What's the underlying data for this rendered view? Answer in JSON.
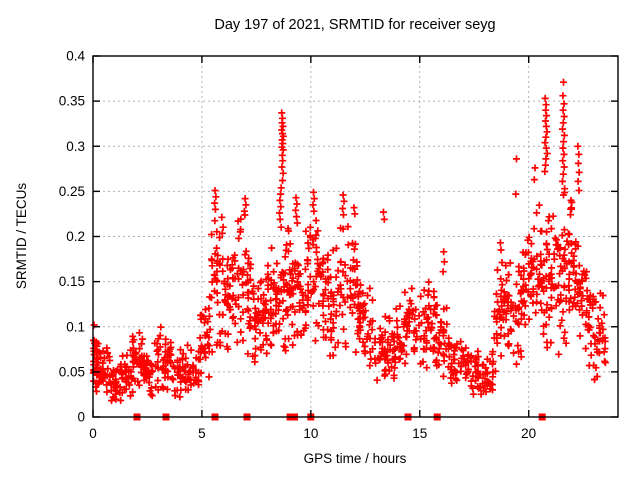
{
  "chart_data": {
    "type": "scatter",
    "title": "Day 197 of 2021, SRMTID for receiver seyg",
    "xlabel": "GPS time / hours",
    "ylabel": "SRMTID / TECUs",
    "series_name": "SRMTID",
    "xlim": [
      0,
      24.1
    ],
    "ylim": [
      0,
      0.4
    ],
    "xtick_values": [
      0,
      5,
      10,
      15,
      20
    ],
    "xtick_labels": [
      "0",
      "5",
      "10",
      "15",
      "20"
    ],
    "ytick_values": [
      0,
      0.05,
      0.1,
      0.15,
      0.2,
      0.25,
      0.3,
      0.35,
      0.4
    ],
    "ytick_labels": [
      "0",
      "0.05",
      "0.1",
      "0.15",
      "0.2",
      "0.25",
      "0.3",
      "0.35",
      "0.4"
    ],
    "grid": true,
    "legend": "none",
    "marker": {
      "shape": "plus",
      "color": "#ff0000",
      "size": 7
    },
    "colors": {
      "axis": "#000000",
      "grid": "#b0b0b0",
      "background": "#ffffff"
    },
    "bands_format": "x_start, x_end, point_count, y_center, y_half_spread",
    "density_bands": [
      [
        0.0,
        0.2,
        15,
        0.07,
        0.03
      ],
      [
        0.0,
        0.3,
        22,
        0.058,
        0.032
      ],
      [
        0.3,
        0.8,
        30,
        0.048,
        0.025
      ],
      [
        0.8,
        1.3,
        30,
        0.042,
        0.024
      ],
      [
        1.3,
        1.8,
        30,
        0.046,
        0.026
      ],
      [
        1.8,
        2.3,
        35,
        0.06,
        0.03
      ],
      [
        2.3,
        2.8,
        30,
        0.048,
        0.025
      ],
      [
        2.8,
        3.6,
        45,
        0.063,
        0.033
      ],
      [
        3.6,
        4.3,
        35,
        0.045,
        0.027
      ],
      [
        4.3,
        4.9,
        30,
        0.06,
        0.03
      ],
      [
        4.9,
        5.4,
        30,
        0.09,
        0.045
      ],
      [
        5.4,
        6.0,
        40,
        0.15,
        0.08
      ],
      [
        6.0,
        6.6,
        40,
        0.13,
        0.055
      ],
      [
        6.6,
        7.4,
        50,
        0.15,
        0.075
      ],
      [
        7.4,
        8.0,
        45,
        0.11,
        0.05
      ],
      [
        8.0,
        8.6,
        45,
        0.13,
        0.06
      ],
      [
        8.6,
        9.1,
        40,
        0.14,
        0.065
      ],
      [
        9.1,
        9.7,
        40,
        0.13,
        0.06
      ],
      [
        9.7,
        10.4,
        45,
        0.15,
        0.07
      ],
      [
        10.4,
        11.2,
        50,
        0.13,
        0.06
      ],
      [
        11.2,
        12.2,
        55,
        0.14,
        0.07
      ],
      [
        12.2,
        12.9,
        40,
        0.1,
        0.05
      ],
      [
        12.9,
        13.9,
        60,
        0.075,
        0.035
      ],
      [
        13.9,
        14.9,
        55,
        0.1,
        0.045
      ],
      [
        14.9,
        15.7,
        45,
        0.1,
        0.045
      ],
      [
        15.7,
        16.4,
        40,
        0.085,
        0.04
      ],
      [
        16.4,
        17.4,
        50,
        0.06,
        0.03
      ],
      [
        17.4,
        18.4,
        55,
        0.048,
        0.025
      ],
      [
        18.4,
        18.9,
        35,
        0.11,
        0.055
      ],
      [
        18.9,
        19.7,
        50,
        0.125,
        0.06
      ],
      [
        19.7,
        20.4,
        45,
        0.15,
        0.075
      ],
      [
        20.4,
        21.0,
        45,
        0.16,
        0.08
      ],
      [
        21.0,
        21.5,
        35,
        0.15,
        0.075
      ],
      [
        21.5,
        22.0,
        40,
        0.17,
        0.08
      ],
      [
        22.0,
        22.5,
        35,
        0.14,
        0.065
      ],
      [
        22.5,
        23.0,
        30,
        0.11,
        0.05
      ],
      [
        23.0,
        23.55,
        32,
        0.09,
        0.05
      ]
    ],
    "peak_points": [
      [
        8.66,
        0.337
      ],
      [
        8.7,
        0.331
      ],
      [
        8.68,
        0.326
      ],
      [
        8.72,
        0.322
      ],
      [
        8.66,
        0.318
      ],
      [
        8.7,
        0.314
      ],
      [
        8.74,
        0.311
      ],
      [
        8.68,
        0.307
      ],
      [
        8.71,
        0.303
      ],
      [
        8.67,
        0.299
      ],
      [
        8.73,
        0.296
      ],
      [
        8.69,
        0.29
      ],
      [
        8.71,
        0.284
      ],
      [
        8.67,
        0.277
      ],
      [
        8.73,
        0.27
      ],
      [
        8.7,
        0.262
      ],
      [
        8.64,
        0.254
      ],
      [
        8.61,
        0.247
      ],
      [
        8.58,
        0.24
      ],
      [
        8.62,
        0.233
      ],
      [
        8.56,
        0.226
      ],
      [
        8.59,
        0.219
      ],
      [
        9.32,
        0.243
      ],
      [
        9.36,
        0.236
      ],
      [
        9.3,
        0.229
      ],
      [
        9.34,
        0.222
      ],
      [
        9.38,
        0.215
      ],
      [
        10.12,
        0.249
      ],
      [
        10.16,
        0.242
      ],
      [
        10.1,
        0.235
      ],
      [
        10.14,
        0.228
      ],
      [
        11.48,
        0.246
      ],
      [
        11.52,
        0.239
      ],
      [
        11.46,
        0.231
      ],
      [
        11.5,
        0.224
      ],
      [
        5.6,
        0.251
      ],
      [
        5.64,
        0.244
      ],
      [
        5.58,
        0.237
      ],
      [
        5.62,
        0.23
      ],
      [
        6.98,
        0.242
      ],
      [
        7.02,
        0.235
      ],
      [
        6.95,
        0.228
      ],
      [
        11.98,
        0.232
      ],
      [
        12.02,
        0.225
      ],
      [
        13.33,
        0.227
      ],
      [
        13.37,
        0.219
      ],
      [
        16.1,
        0.183
      ],
      [
        16.13,
        0.172
      ],
      [
        16.07,
        0.161
      ],
      [
        18.7,
        0.193
      ],
      [
        18.73,
        0.185
      ],
      [
        19.44,
        0.286
      ],
      [
        19.41,
        0.247
      ],
      [
        20.29,
        0.276
      ],
      [
        20.26,
        0.263
      ],
      [
        20.76,
        0.353
      ],
      [
        20.8,
        0.346
      ],
      [
        20.78,
        0.34
      ],
      [
        20.82,
        0.334
      ],
      [
        20.77,
        0.328
      ],
      [
        20.81,
        0.322
      ],
      [
        20.84,
        0.316
      ],
      [
        20.79,
        0.31
      ],
      [
        20.75,
        0.304
      ],
      [
        20.81,
        0.298
      ],
      [
        20.85,
        0.292
      ],
      [
        20.79,
        0.286
      ],
      [
        20.77,
        0.279
      ],
      [
        20.74,
        0.272
      ],
      [
        21.6,
        0.371
      ],
      [
        21.57,
        0.356
      ],
      [
        21.62,
        0.347
      ],
      [
        21.58,
        0.34
      ],
      [
        21.63,
        0.333
      ],
      [
        21.59,
        0.326
      ],
      [
        21.55,
        0.319
      ],
      [
        21.64,
        0.312
      ],
      [
        21.6,
        0.305
      ],
      [
        21.57,
        0.298
      ],
      [
        21.62,
        0.291
      ],
      [
        21.56,
        0.284
      ],
      [
        21.63,
        0.277
      ],
      [
        21.59,
        0.269
      ],
      [
        21.55,
        0.261
      ],
      [
        21.65,
        0.253
      ],
      [
        21.6,
        0.246
      ],
      [
        22.26,
        0.3
      ],
      [
        22.3,
        0.291
      ],
      [
        22.28,
        0.281
      ],
      [
        22.32,
        0.271
      ],
      [
        22.27,
        0.261
      ],
      [
        22.31,
        0.251
      ]
    ],
    "zero_marker_x": [
      2.02,
      3.35,
      5.6,
      7.07,
      9.05,
      9.25,
      10.0,
      14.46,
      15.8,
      20.62
    ]
  }
}
